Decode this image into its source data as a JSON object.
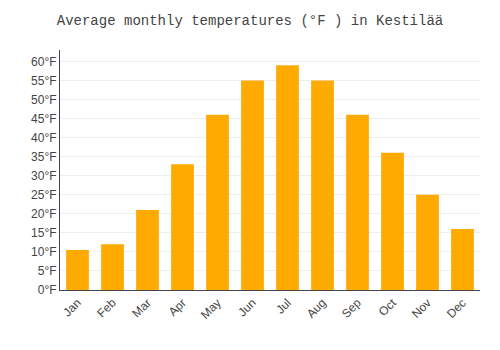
{
  "chart_data": {
    "type": "bar",
    "title": "Average monthly temperatures (°F ) in Kestilää",
    "categories": [
      "Jan",
      "Feb",
      "Mar",
      "Apr",
      "May",
      "Jun",
      "Jul",
      "Aug",
      "Sep",
      "Oct",
      "Nov",
      "Dec"
    ],
    "values": [
      10.5,
      12,
      21,
      33,
      46,
      55,
      59,
      55,
      46,
      36,
      25,
      16
    ],
    "color": "#FFAA00",
    "ylim": [
      0,
      63
    ],
    "yticks": [
      {
        "value": 0,
        "label": "0°F"
      },
      {
        "value": 5,
        "label": "5°F"
      },
      {
        "value": 10,
        "label": "10°F"
      },
      {
        "value": 15,
        "label": "15°F"
      },
      {
        "value": 20,
        "label": "20°F"
      },
      {
        "value": 25,
        "label": "25°F"
      },
      {
        "value": 30,
        "label": "30°F"
      },
      {
        "value": 35,
        "label": "35°F"
      },
      {
        "value": 40,
        "label": "40°F"
      },
      {
        "value": 45,
        "label": "45°F"
      },
      {
        "value": 50,
        "label": "50°F"
      },
      {
        "value": 55,
        "label": "55°F"
      },
      {
        "value": 60,
        "label": "60°F"
      }
    ],
    "grid": true
  }
}
